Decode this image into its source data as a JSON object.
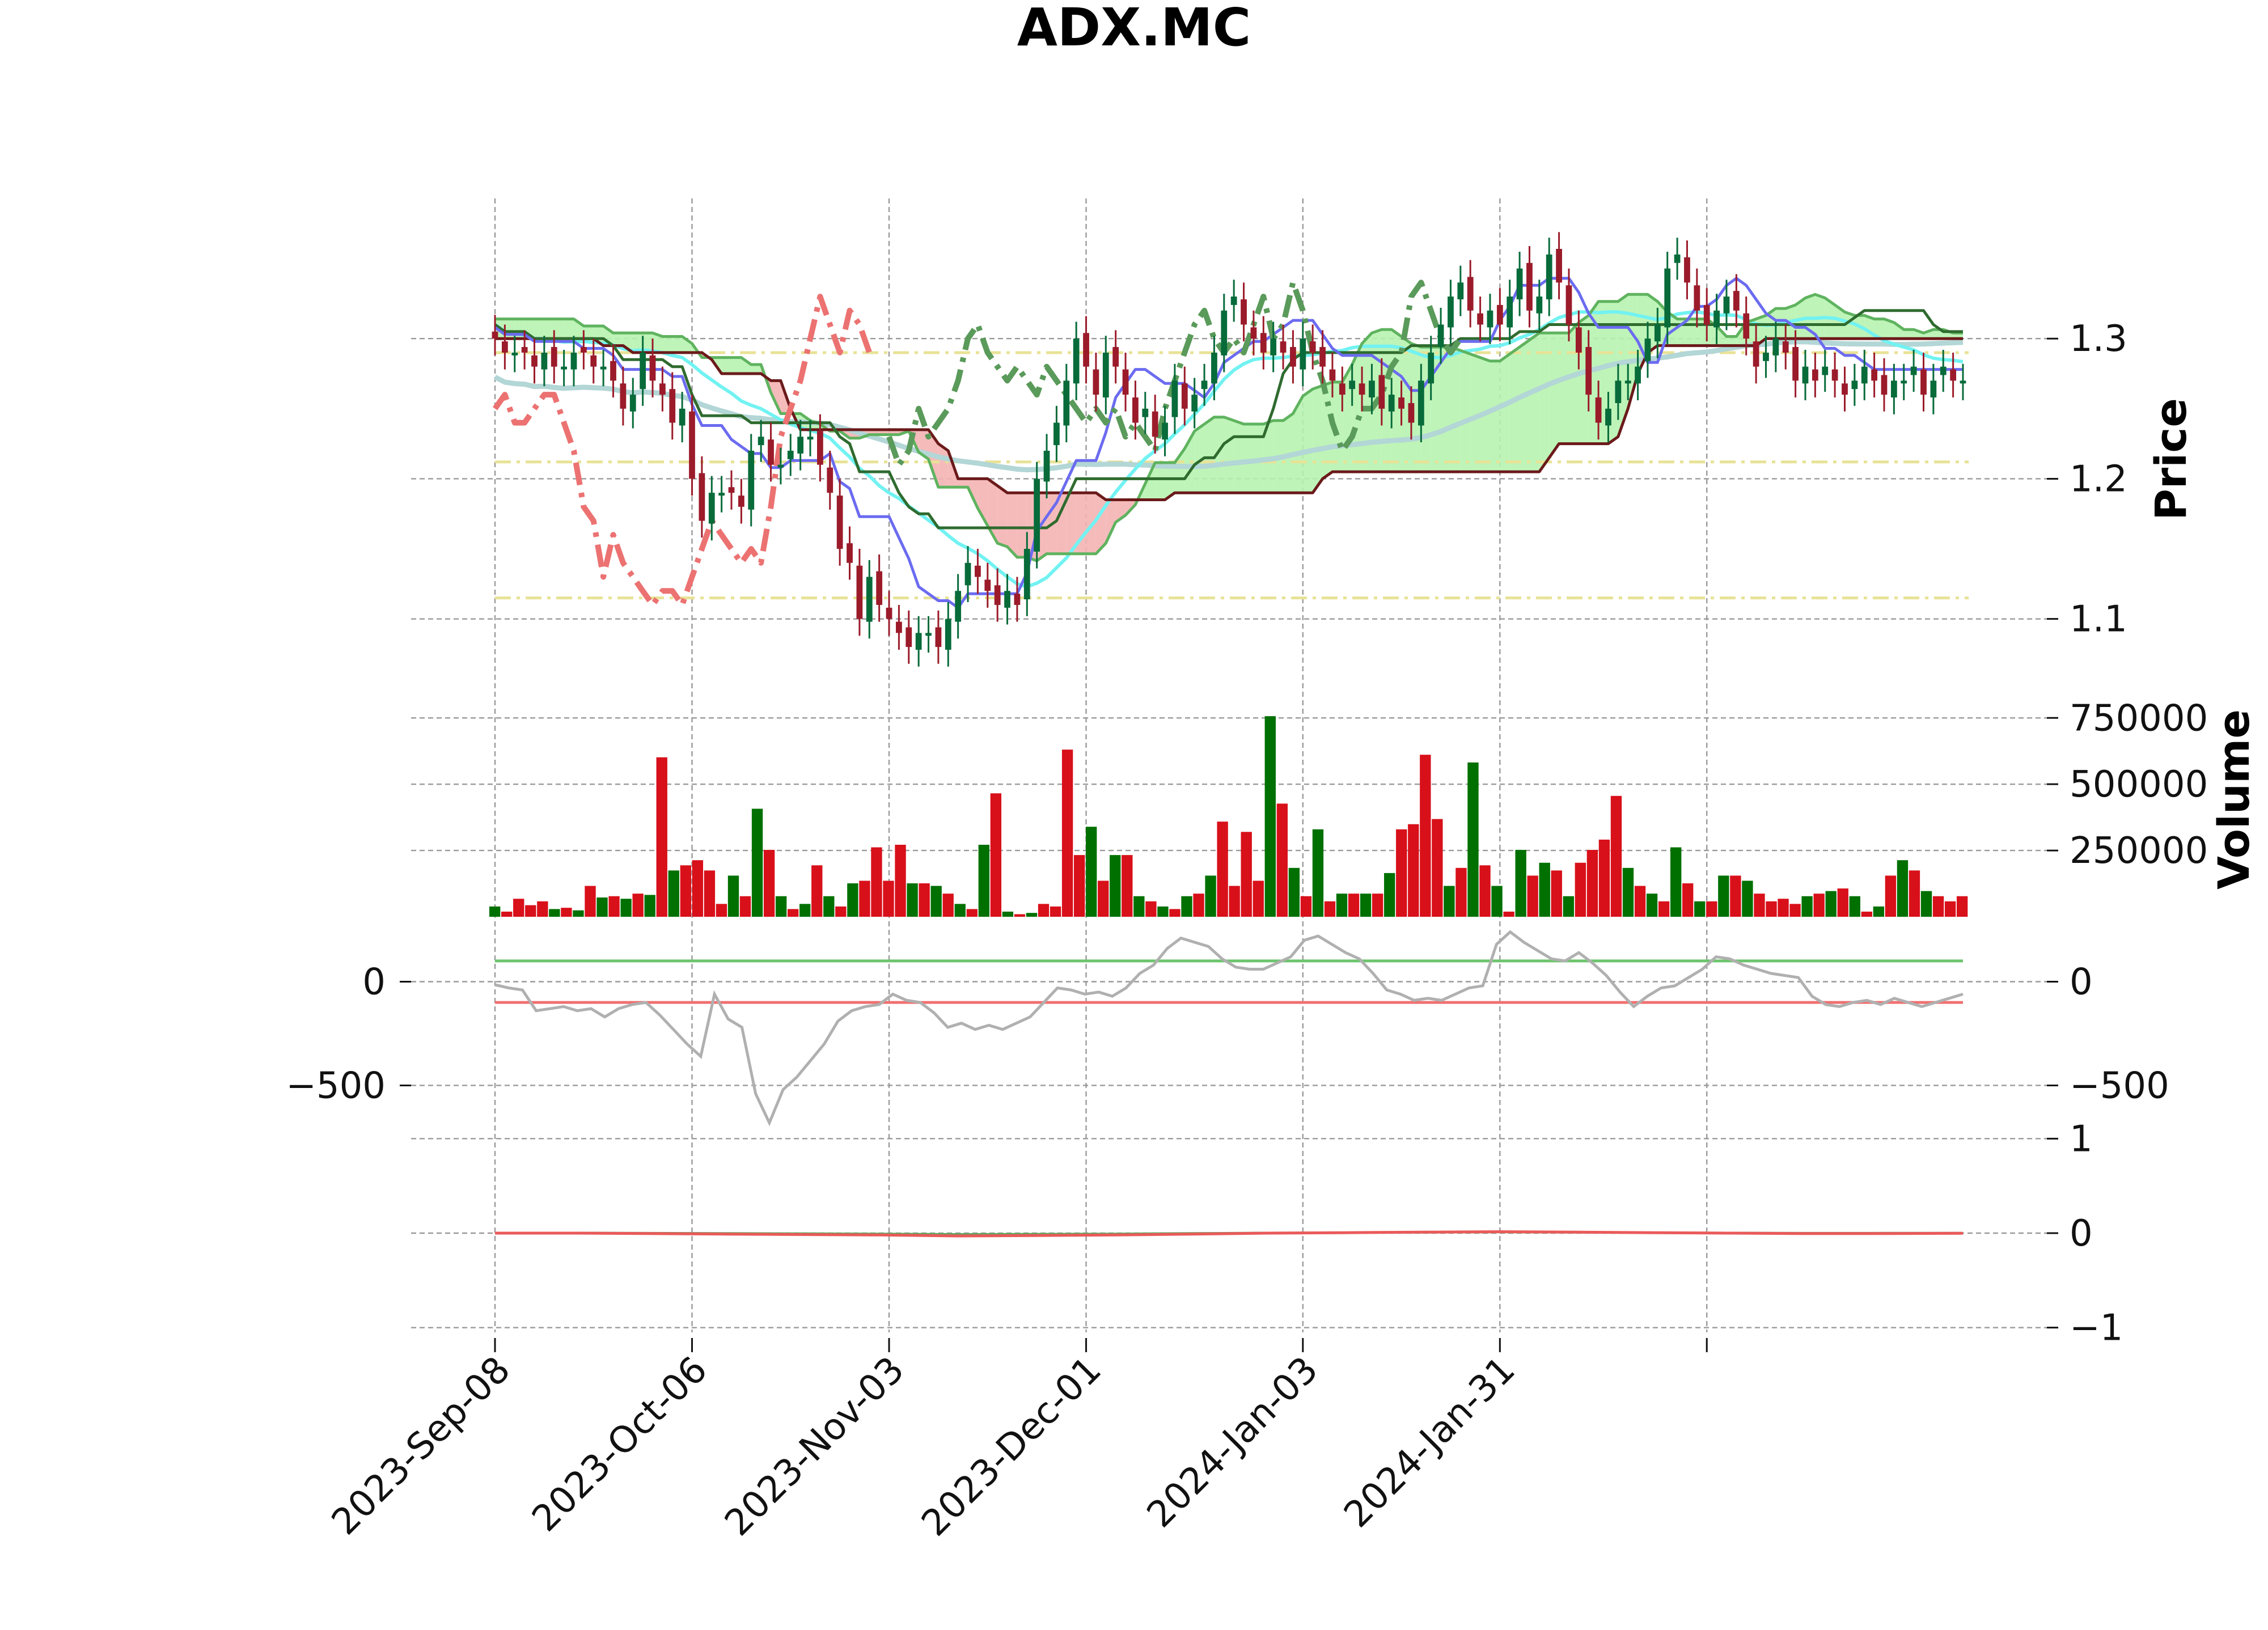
{
  "chart_data": {
    "title": "ADX.MC",
    "panels": [
      {
        "name": "price",
        "type": "candlestick",
        "ylabel": "Price",
        "ylim": [
          1.04,
          1.4
        ],
        "y_ticks": [
          "1.1",
          "1.2",
          "1.3"
        ],
        "y_tick_values": [
          1.1,
          1.2,
          1.3
        ],
        "horizontal_levels": [
          1.29,
          1.212,
          1.115
        ],
        "close": [
          1.3,
          1.29,
          1.29,
          1.29,
          1.28,
          1.29,
          1.28,
          1.28,
          1.29,
          1.29,
          1.28,
          1.28,
          1.27,
          1.25,
          1.26,
          1.29,
          1.27,
          1.26,
          1.24,
          1.25,
          1.2,
          1.17,
          1.19,
          1.19,
          1.19,
          1.18,
          1.22,
          1.23,
          1.21,
          1.21,
          1.22,
          1.23,
          1.23,
          1.21,
          1.19,
          1.15,
          1.14,
          1.1,
          1.13,
          1.11,
          1.1,
          1.09,
          1.08,
          1.09,
          1.09,
          1.08,
          1.1,
          1.12,
          1.14,
          1.13,
          1.12,
          1.11,
          1.12,
          1.11,
          1.15,
          1.2,
          1.22,
          1.24,
          1.27,
          1.3,
          1.28,
          1.26,
          1.29,
          1.28,
          1.26,
          1.24,
          1.25,
          1.23,
          1.24,
          1.27,
          1.25,
          1.26,
          1.27,
          1.29,
          1.32,
          1.33,
          1.31,
          1.3,
          1.29,
          1.3,
          1.29,
          1.28,
          1.3,
          1.29,
          1.28,
          1.27,
          1.26,
          1.27,
          1.26,
          1.27,
          1.25,
          1.26,
          1.25,
          1.24,
          1.27,
          1.29,
          1.31,
          1.33,
          1.34,
          1.32,
          1.31,
          1.32,
          1.31,
          1.33,
          1.35,
          1.32,
          1.33,
          1.36,
          1.34,
          1.31,
          1.29,
          1.26,
          1.24,
          1.25,
          1.27,
          1.27,
          1.28,
          1.3,
          1.31,
          1.35,
          1.36,
          1.34,
          1.32,
          1.31,
          1.32,
          1.33,
          1.32,
          1.3,
          1.28,
          1.29,
          1.3,
          1.29,
          1.27,
          1.28,
          1.27,
          1.28,
          1.27,
          1.26,
          1.27,
          1.28,
          1.27,
          1.26,
          1.27,
          1.27,
          1.28,
          1.26,
          1.27,
          1.28,
          1.27,
          1.27
        ],
        "series": [
          {
            "name": "tenkan",
            "color": "#6b6bf0"
          },
          {
            "name": "kijun",
            "color": "#2f6b2f"
          },
          {
            "name": "senkou_a",
            "color": "#5fb35f"
          },
          {
            "name": "senkou_b",
            "color": "#6b1a1a"
          },
          {
            "name": "chikou_up",
            "color": "#5a9a5a"
          },
          {
            "name": "chikou_down",
            "color": "#ec7272"
          },
          {
            "name": "sma_fast",
            "color": "#72f2f2"
          },
          {
            "name": "sma_slow",
            "color": "#b3d6d6"
          }
        ]
      },
      {
        "name": "volume",
        "type": "bar",
        "ylabel": "Volume",
        "y_ticks": [
          "250000",
          "500000",
          "750000"
        ],
        "y_tick_values": [
          250000,
          500000,
          750000
        ],
        "values": [
          40000,
          20000,
          70000,
          45000,
          60000,
          30000,
          35000,
          25000,
          120000,
          75000,
          80000,
          70000,
          90000,
          85000,
          620000,
          180000,
          200000,
          220000,
          180000,
          50000,
          160000,
          80000,
          420000,
          260000,
          80000,
          30000,
          50000,
          200000,
          80000,
          40000,
          130000,
          140000,
          270000,
          140000,
          280000,
          130000,
          130000,
          120000,
          90000,
          50000,
          30000,
          280000,
          480000,
          20000,
          10000,
          15000,
          50000,
          40000,
          650000,
          240000,
          350000,
          140000,
          240000,
          240000,
          80000,
          60000,
          40000,
          30000,
          80000,
          90000,
          160000,
          370000,
          120000,
          330000,
          140000,
          780000,
          440000,
          190000,
          80000,
          340000,
          60000,
          90000,
          90000,
          90000,
          90000,
          170000,
          340000,
          360000,
          630000,
          380000,
          120000,
          190000,
          600000,
          200000,
          120000,
          20000,
          260000,
          160000,
          210000,
          180000,
          80000,
          210000,
          260000,
          300000,
          470000,
          190000,
          120000,
          90000,
          60000,
          270000,
          130000,
          60000,
          60000,
          160000,
          160000,
          140000,
          90000,
          60000,
          70000,
          50000,
          80000,
          90000,
          100000,
          110000,
          80000,
          20000,
          40000,
          160000,
          220000,
          180000,
          100000,
          80000,
          60000,
          80000
        ],
        "colors": [
          "#d8101a",
          "#007000"
        ]
      },
      {
        "name": "oscillator",
        "type": "line",
        "y_ticks": [
          "−500",
          "0"
        ],
        "y_tick_values": [
          -500,
          0
        ],
        "ylim": [
          -720,
          250
        ],
        "upper_level": 100,
        "lower_level": -100,
        "values": [
          -15,
          -30,
          -40,
          -140,
          -130,
          -120,
          -140,
          -130,
          -170,
          -130,
          -110,
          -100,
          -160,
          -230,
          -300,
          -360,
          -60,
          -180,
          -220,
          -540,
          -680,
          -520,
          -460,
          -380,
          -300,
          -190,
          -140,
          -120,
          -110,
          -60,
          -90,
          -100,
          -150,
          -220,
          -200,
          -230,
          -210,
          -230,
          -200,
          -170,
          -100,
          -30,
          -40,
          -60,
          -50,
          -70,
          -30,
          40,
          80,
          160,
          210,
          190,
          170,
          110,
          70,
          60,
          60,
          90,
          120,
          200,
          220,
          180,
          140,
          110,
          40,
          -40,
          -60,
          -90,
          -80,
          -90,
          -60,
          -30,
          -20,
          180,
          240,
          190,
          150,
          110,
          100,
          140,
          90,
          30,
          -50,
          -120,
          -70,
          -30,
          -20,
          20,
          60,
          120,
          110,
          80,
          60,
          40,
          30,
          20,
          -70,
          -110,
          -120,
          -100,
          -90,
          -110,
          -80,
          -100,
          -120,
          -100,
          -80,
          -60
        ],
        "colors": {
          "line": "#b0b0b0",
          "upper": "#6cc56c",
          "lower": "#f07070"
        }
      },
      {
        "name": "macd",
        "type": "line",
        "y_ticks": [
          "−1",
          "0",
          "1"
        ],
        "y_tick_values": [
          -1,
          0,
          1
        ],
        "ylim": [
          -1.05,
          1.05
        ],
        "values": [
          0.0,
          0.0,
          -0.005,
          -0.01,
          -0.015,
          -0.02,
          -0.03,
          -0.025,
          -0.02,
          -0.01,
          0.0,
          0.005,
          0.01,
          0.015,
          0.01,
          0.005,
          0.0,
          -0.005,
          -0.004,
          -0.002
        ],
        "colors": {
          "line": "#ea5a5a",
          "signal": "#5fa85f"
        }
      }
    ],
    "x_tick_labels": [
      "2023-Sep-08",
      "2023-Oct-06",
      "2023-Nov-03",
      "2023-Dec-01",
      "2024-Jan-03",
      "2024-Jan-31"
    ],
    "colors": {
      "up": "#076b3a",
      "down": "#9b1b2a",
      "cloud_bull": "#b7f3b0",
      "cloud_bear": "#f4b4b4",
      "level": "#e8e296"
    }
  }
}
